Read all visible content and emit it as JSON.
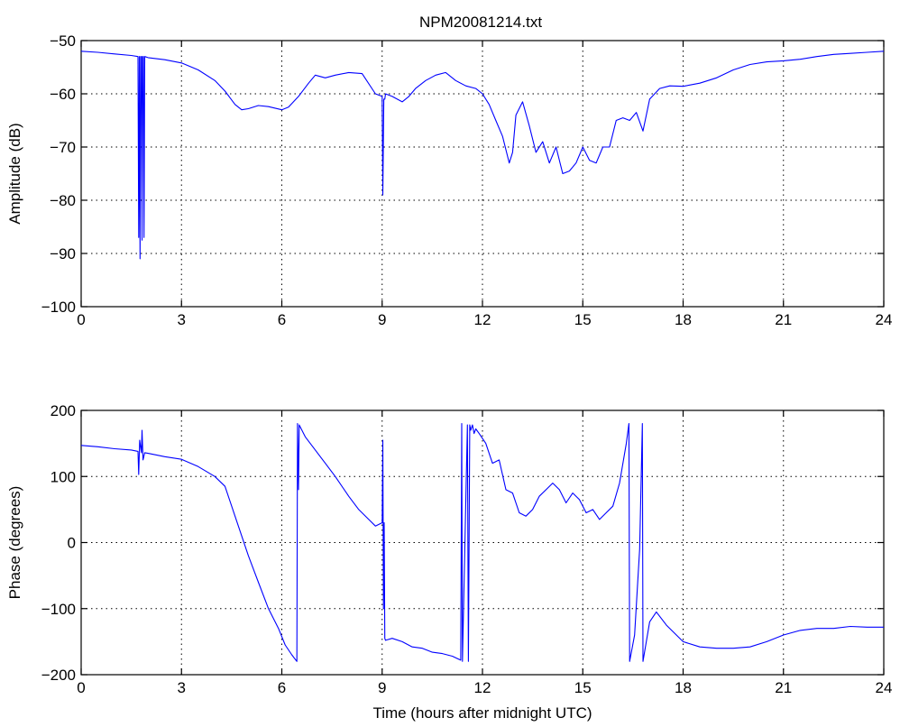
{
  "figure": {
    "title": "NPM20081214.txt",
    "line_color": "#0000ff"
  },
  "chart_data": [
    {
      "type": "line",
      "name": "amplitude",
      "title": "NPM20081214.txt",
      "xlabel": "",
      "ylabel": "Amplitude (dB)",
      "xlim": [
        0,
        24
      ],
      "ylim": [
        -100,
        -50
      ],
      "xticks": [
        0,
        3,
        6,
        9,
        12,
        15,
        18,
        21,
        24
      ],
      "yticks": [
        -100,
        -90,
        -80,
        -70,
        -60,
        -50
      ],
      "xtick_labels": [
        "0",
        "3",
        "6",
        "9",
        "12",
        "15",
        "18",
        "21",
        "24"
      ],
      "ytick_labels": [
        "−100",
        "−90",
        "−80",
        "−70",
        "−60",
        "−50"
      ],
      "grid": true,
      "x": [
        0,
        0.5,
        1.0,
        1.5,
        1.7,
        1.72,
        1.74,
        1.76,
        1.78,
        1.8,
        1.82,
        1.84,
        1.86,
        1.88,
        1.9,
        2.0,
        2.5,
        3.0,
        3.5,
        4.0,
        4.3,
        4.6,
        4.8,
        5.0,
        5.3,
        5.6,
        6.0,
        6.2,
        6.5,
        6.8,
        7.0,
        7.3,
        7.6,
        8.0,
        8.4,
        8.8,
        9.0,
        9.02,
        9.05,
        9.08,
        9.1,
        9.3,
        9.6,
        9.8,
        10.0,
        10.3,
        10.6,
        10.9,
        11.2,
        11.5,
        11.8,
        12.0,
        12.2,
        12.4,
        12.6,
        12.8,
        12.9,
        13.0,
        13.2,
        13.4,
        13.6,
        13.8,
        14.0,
        14.2,
        14.4,
        14.6,
        14.8,
        15.0,
        15.2,
        15.4,
        15.6,
        15.8,
        16.0,
        16.2,
        16.4,
        16.6,
        16.8,
        17.0,
        17.3,
        17.6,
        18.0,
        18.5,
        19.0,
        19.5,
        20.0,
        20.5,
        21.0,
        21.5,
        22.0,
        22.5,
        23.0,
        23.5,
        24.0
      ],
      "y": [
        -52,
        -52.2,
        -52.5,
        -52.8,
        -53,
        -87,
        -53,
        -91,
        -53,
        -53,
        -87.5,
        -53,
        -53,
        -87,
        -53,
        -53.2,
        -53.6,
        -54.2,
        -55.5,
        -57.5,
        -59.5,
        -62,
        -63,
        -62.8,
        -62.2,
        -62.4,
        -63,
        -62.5,
        -60.5,
        -58,
        -56.5,
        -57,
        -56.5,
        -56,
        -56.2,
        -60,
        -60.5,
        -79,
        -61,
        -61,
        -60,
        -60.5,
        -61.5,
        -60.5,
        -59,
        -57.5,
        -56.5,
        -56,
        -57.5,
        -58.5,
        -59,
        -60,
        -62,
        -65,
        -68,
        -73,
        -71,
        -64,
        -61.5,
        -66,
        -71,
        -69,
        -73,
        -70,
        -75,
        -74.5,
        -73,
        -70,
        -72.5,
        -73,
        -70,
        -70,
        -65,
        -64.5,
        -65,
        -63.5,
        -67,
        -61,
        -59,
        -58.5,
        -58.6,
        -58,
        -57,
        -55.5,
        -54.5,
        -54,
        -53.8,
        -53.5,
        -53,
        -52.6,
        -52.4,
        -52.2,
        -52
      ]
    },
    {
      "type": "line",
      "name": "phase",
      "title": "",
      "xlabel": "Time (hours after midnight UTC)",
      "ylabel": "Phase (degrees)",
      "xlim": [
        0,
        24
      ],
      "ylim": [
        -200,
        200
      ],
      "xticks": [
        0,
        3,
        6,
        9,
        12,
        15,
        18,
        21,
        24
      ],
      "yticks": [
        -200,
        -100,
        0,
        100,
        200
      ],
      "xtick_labels": [
        "0",
        "3",
        "6",
        "9",
        "12",
        "15",
        "18",
        "21",
        "24"
      ],
      "ytick_labels": [
        "−200",
        "−100",
        "0",
        "100",
        "200"
      ],
      "grid": true,
      "x": [
        0,
        0.5,
        1.0,
        1.5,
        1.7,
        1.72,
        1.75,
        1.8,
        1.82,
        1.85,
        1.9,
        2.0,
        2.5,
        3.0,
        3.5,
        4.0,
        4.3,
        4.6,
        5.0,
        5.3,
        5.6,
        5.9,
        6.1,
        6.3,
        6.45,
        6.47,
        6.5,
        6.52,
        6.7,
        7.0,
        7.3,
        7.6,
        8.0,
        8.3,
        8.6,
        8.8,
        9.0,
        9.02,
        9.04,
        9.06,
        9.08,
        9.1,
        9.3,
        9.6,
        9.9,
        10.2,
        10.5,
        10.8,
        11.1,
        11.35,
        11.38,
        11.4,
        11.55,
        11.58,
        11.62,
        11.65,
        11.7,
        11.75,
        11.8,
        11.9,
        12.1,
        12.3,
        12.5,
        12.7,
        12.9,
        13.1,
        13.3,
        13.5,
        13.7,
        13.9,
        14.1,
        14.3,
        14.5,
        14.7,
        14.9,
        15.1,
        15.3,
        15.5,
        15.7,
        15.9,
        16.1,
        16.3,
        16.38,
        16.4,
        16.55,
        16.7,
        16.78,
        16.8,
        17.0,
        17.2,
        17.5,
        18.0,
        18.5,
        19.0,
        19.5,
        20.0,
        20.5,
        21.0,
        21.5,
        22.0,
        22.5,
        23.0,
        23.5,
        24.0
      ],
      "y": [
        147,
        145,
        142,
        140,
        138,
        103,
        155,
        136,
        170,
        125,
        136,
        135,
        130,
        126,
        115,
        100,
        85,
        40,
        -20,
        -60,
        -100,
        -130,
        -155,
        -170,
        -180,
        180,
        80,
        178,
        160,
        140,
        120,
        100,
        70,
        50,
        35,
        25,
        30,
        155,
        -100,
        30,
        -145,
        -148,
        -145,
        -150,
        -158,
        -160,
        -166,
        -168,
        -172,
        -178,
        180,
        -180,
        178,
        -180,
        178,
        170,
        178,
        165,
        172,
        165,
        150,
        120,
        125,
        80,
        75,
        45,
        40,
        50,
        70,
        80,
        90,
        80,
        60,
        75,
        65,
        45,
        50,
        35,
        45,
        55,
        90,
        150,
        180,
        -180,
        -140,
        -10,
        180,
        -180,
        -120,
        -105,
        -125,
        -150,
        -158,
        -160,
        -160,
        -158,
        -150,
        -140,
        -133,
        -130,
        -130,
        -127,
        -128,
        -128
      ]
    }
  ]
}
